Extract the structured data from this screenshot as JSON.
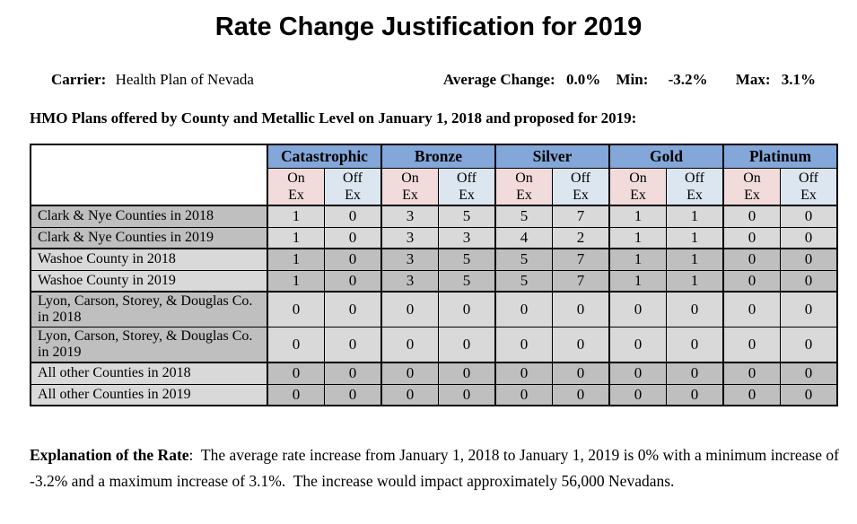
{
  "page": {
    "title": "Rate Change Justification for 2019"
  },
  "carrier": {
    "label": "Carrier:",
    "value": "Health Plan of Nevada"
  },
  "summary": {
    "avg_label": "Average Change:",
    "avg_value": "0.0%",
    "min_label": "Min:",
    "min_value": "-3.2%",
    "max_label": "Max:",
    "max_value": "3.1%"
  },
  "table_heading": "HMO Plans offered by County and Metallic Level on January 1, 2018 and proposed for 2019:",
  "table": {
    "metallic_levels": [
      "Catastrophic",
      "Bronze",
      "Silver",
      "Gold",
      "Platinum"
    ],
    "exchange_subheaders": [
      "On\nEx",
      "Off\nEx"
    ],
    "rows": [
      {
        "label": "Clark & Nye Counties in 2018",
        "values": [
          1,
          0,
          3,
          5,
          5,
          7,
          1,
          1,
          0,
          0
        ],
        "label_shade": "dark",
        "data_shade": "light",
        "group_start": true,
        "tall": false
      },
      {
        "label": "Clark & Nye Counties in 2019",
        "values": [
          1,
          0,
          3,
          3,
          4,
          2,
          1,
          1,
          0,
          0
        ],
        "label_shade": "dark",
        "data_shade": "light",
        "group_start": false,
        "tall": false
      },
      {
        "label": "Washoe County in 2018",
        "values": [
          1,
          0,
          3,
          5,
          5,
          7,
          1,
          1,
          0,
          0
        ],
        "label_shade": "light",
        "data_shade": "dark",
        "group_start": true,
        "tall": false
      },
      {
        "label": "Washoe County in 2019",
        "values": [
          1,
          0,
          3,
          5,
          5,
          7,
          1,
          1,
          0,
          0
        ],
        "label_shade": "light",
        "data_shade": "dark",
        "group_start": false,
        "tall": false
      },
      {
        "label": "Lyon, Carson, Storey, & Douglas Co. in 2018",
        "values": [
          0,
          0,
          0,
          0,
          0,
          0,
          0,
          0,
          0,
          0
        ],
        "label_shade": "dark",
        "data_shade": "light",
        "group_start": true,
        "tall": true
      },
      {
        "label": "Lyon, Carson, Storey, & Douglas Co. in 2019",
        "values": [
          0,
          0,
          0,
          0,
          0,
          0,
          0,
          0,
          0,
          0
        ],
        "label_shade": "dark",
        "data_shade": "light",
        "group_start": false,
        "tall": true
      },
      {
        "label": "All other Counties in 2018",
        "values": [
          0,
          0,
          0,
          0,
          0,
          0,
          0,
          0,
          0,
          0
        ],
        "label_shade": "light",
        "data_shade": "dark",
        "group_start": true,
        "tall": false
      },
      {
        "label": "All other Counties in 2019",
        "values": [
          0,
          0,
          0,
          0,
          0,
          0,
          0,
          0,
          0,
          0
        ],
        "label_shade": "light",
        "data_shade": "dark",
        "group_start": false,
        "tall": false
      }
    ]
  },
  "explanation": {
    "lead": "Explanation of the Rate",
    "body": ":  The average rate increase from January 1, 2018 to January 1, 2019 is 0% with a minimum increase of -3.2% and a maximum increase of 3.1%.  The increase would impact approximately 56,000 Nevadans."
  },
  "colors": {
    "header_blue": "#84a7d9",
    "on_ex_pink": "#f2dcdb",
    "off_ex_blue": "#dce6f1",
    "row_gray_dark": "#bfbfbf",
    "row_gray_light": "#d9d9d9"
  }
}
